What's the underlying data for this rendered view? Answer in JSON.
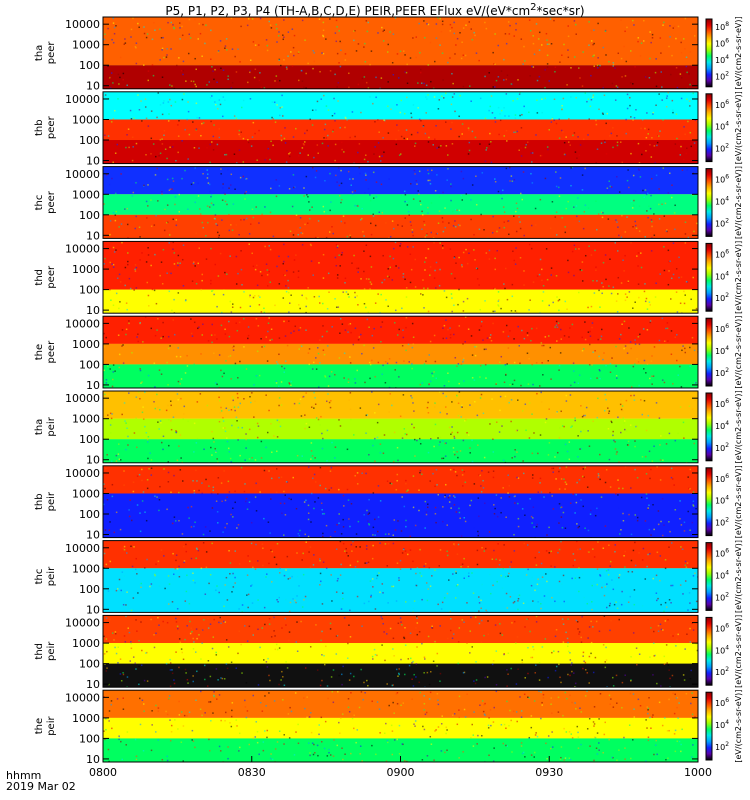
{
  "title": {
    "prefix": "P5, P1, P2, P3, P4 (TH-A,B,C,D,E) PEIR,PEER EFlux eV/(eV*cm",
    "sup": "2",
    "suffix": "*sec*sr)"
  },
  "footer": {
    "time_label": "hhmm",
    "date_label": "2019 Mar 02"
  },
  "chart_data": {
    "type": "heatmap",
    "x_ticks": [
      "0800",
      "0830",
      "0900",
      "0930",
      "1000"
    ],
    "y_ticks": [
      "10",
      "100",
      "1000",
      "10000"
    ],
    "colorbar_label": "[eV/(cm2-s-sr-eV)]",
    "colormap": [
      "#000000",
      "#5a00a8",
      "#1020ff",
      "#00a0ff",
      "#00e8e8",
      "#00ff60",
      "#a0ff00",
      "#ffff00",
      "#ffb000",
      "#ff5000",
      "#e00000",
      "#8a0000"
    ],
    "panels": [
      {
        "name": "tha\npeer",
        "cbar_ticks": [
          "10^2",
          "10^4",
          "10^6",
          "10^8"
        ],
        "bands": [
          {
            "y": "100-10000",
            "color": "#ff6000"
          },
          {
            "y": "10-100",
            "color": "#b00000"
          }
        ]
      },
      {
        "name": "thb\npeer",
        "cbar_ticks": [
          "10^2",
          "10^4",
          "10^6"
        ],
        "bands": [
          {
            "y": "1000-10000",
            "color": "#00ffff"
          },
          {
            "y": "100-1000",
            "color": "#ff3000"
          },
          {
            "y": "10-100",
            "color": "#d00000"
          }
        ]
      },
      {
        "name": "thc\npeer",
        "cbar_ticks": [
          "10^2",
          "10^4",
          "10^6"
        ],
        "bands": [
          {
            "y": "1000-10000",
            "color": "#1030ff"
          },
          {
            "y": "100-1000",
            "color": "#00ff80"
          },
          {
            "y": "10-100",
            "color": "#ff4000"
          }
        ]
      },
      {
        "name": "thd\npeer",
        "cbar_ticks": [
          "10^2",
          "10^4",
          "10^6"
        ],
        "bands": [
          {
            "y": "100-10000",
            "color": "#ff2000"
          },
          {
            "y": "10-100",
            "color": "#ffff00"
          }
        ]
      },
      {
        "name": "the\npeer",
        "cbar_ticks": [
          "10^2",
          "10^4",
          "10^6"
        ],
        "bands": [
          {
            "y": "1000-10000",
            "color": "#ff2000"
          },
          {
            "y": "100-1000",
            "color": "#ff9000"
          },
          {
            "y": "10-100",
            "color": "#00ff60"
          }
        ]
      },
      {
        "name": "tha\npeir",
        "cbar_ticks": [
          "10^2",
          "10^4",
          "10^6"
        ],
        "bands": [
          {
            "y": "1000-10000",
            "color": "#ffc000"
          },
          {
            "y": "100-1000",
            "color": "#b0ff00"
          },
          {
            "y": "10-100",
            "color": "#00ff60"
          }
        ]
      },
      {
        "name": "thb\npeir",
        "cbar_ticks": [
          "10^2",
          "10^4",
          "10^6"
        ],
        "bands": [
          {
            "y": "1000-10000",
            "color": "#ff3000"
          },
          {
            "y": "10-1000",
            "color": "#1020ff"
          }
        ]
      },
      {
        "name": "thc\npeir",
        "cbar_ticks": [
          "10^2",
          "10^4",
          "10^6"
        ],
        "bands": [
          {
            "y": "1000-10000",
            "color": "#ff3000"
          },
          {
            "y": "10-1000",
            "color": "#00e0ff"
          }
        ]
      },
      {
        "name": "thd\npeir",
        "cbar_ticks": [
          "10^2",
          "10^4",
          "10^6"
        ],
        "bands": [
          {
            "y": "1000-10000",
            "color": "#ff4000"
          },
          {
            "y": "100-1000",
            "color": "#ffff00"
          },
          {
            "y": "10-100",
            "color": "#101010"
          }
        ]
      },
      {
        "name": "the\npeir",
        "cbar_ticks": [
          "10^2",
          "10^4",
          "10^6"
        ],
        "bands": [
          {
            "y": "1000-10000",
            "color": "#ff7000"
          },
          {
            "y": "100-1000",
            "color": "#ffff00"
          },
          {
            "y": "10-100",
            "color": "#00ff60"
          }
        ]
      }
    ]
  }
}
